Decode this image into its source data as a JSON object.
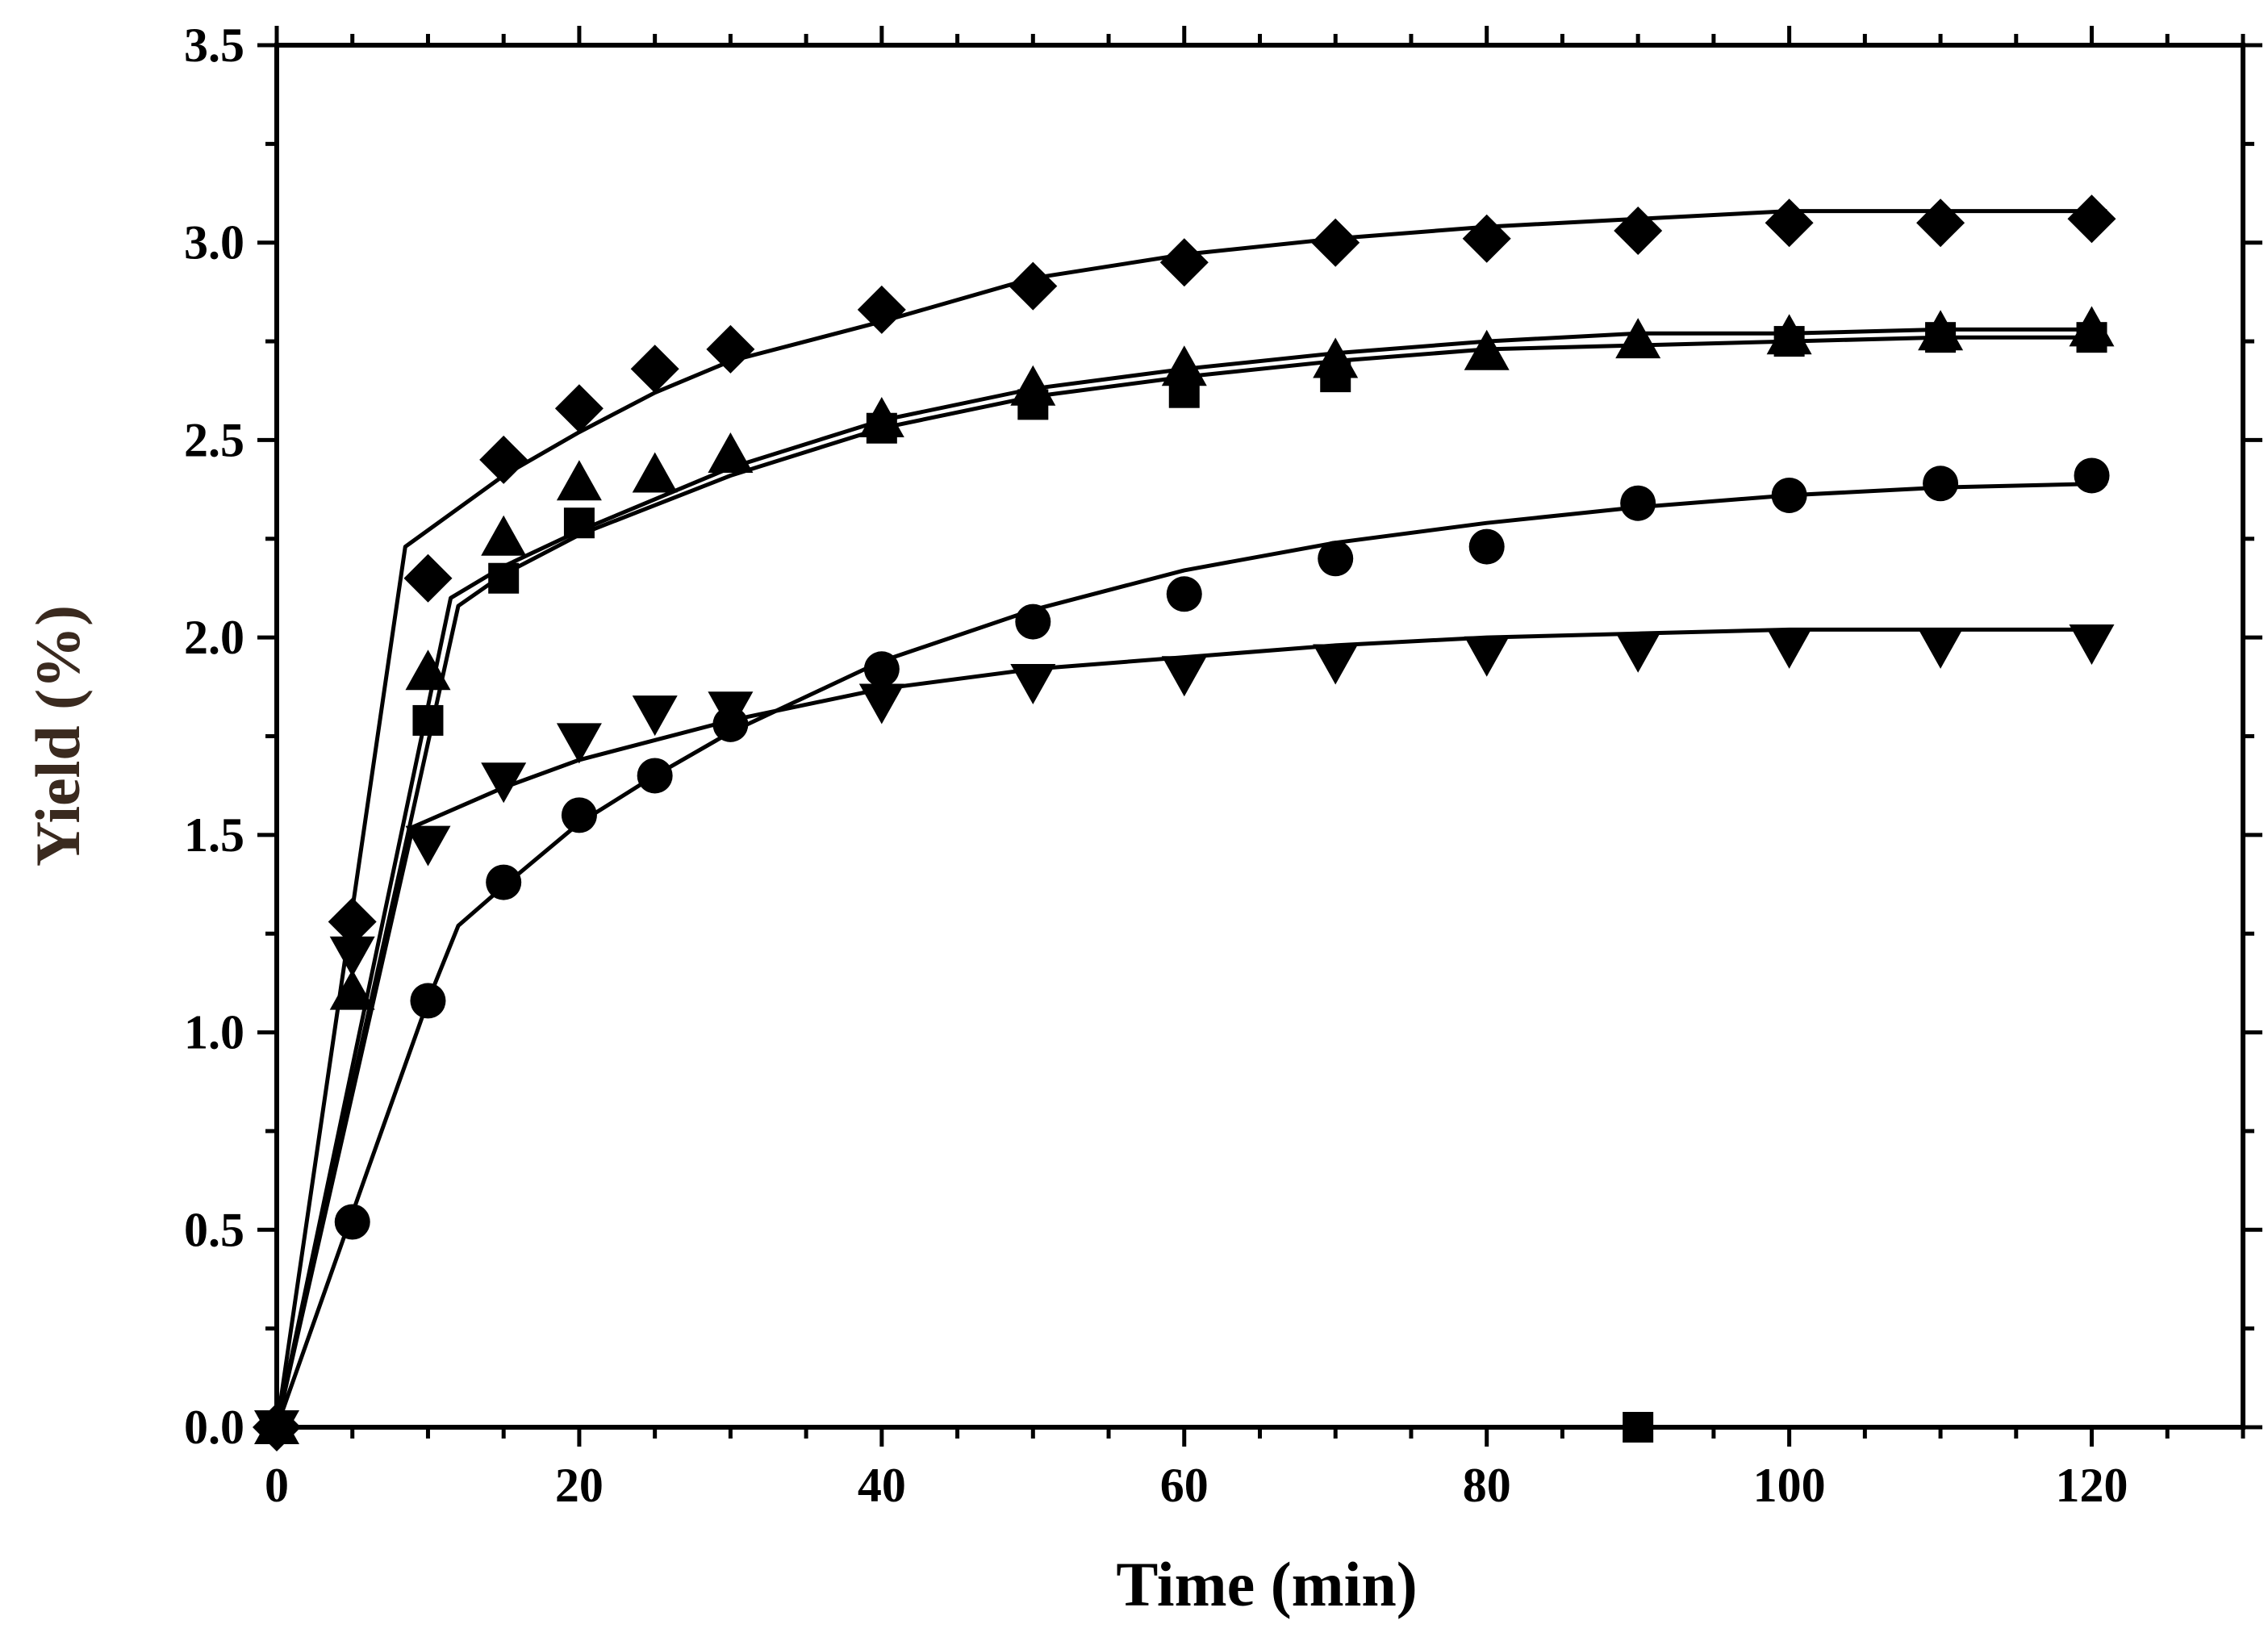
{
  "chart_data": {
    "type": "scatter",
    "title": "",
    "xlabel": "Time (min)",
    "ylabel": "Yield (%)",
    "xlim": [
      0,
      130
    ],
    "ylim": [
      0,
      3.5
    ],
    "x_ticks": [
      "0",
      "20",
      "40",
      "60",
      "80",
      "100",
      "120"
    ],
    "y_ticks": [
      "0.0",
      "0.5",
      "1.0",
      "1.5",
      "2.0",
      "2.5",
      "3.0",
      "3.5"
    ],
    "grid": false,
    "legend": "none",
    "colors": {
      "ink": "#000000",
      "xlabel": "#000000",
      "ylabel": "#3a2a1f"
    },
    "series": [
      {
        "name": "diamond",
        "marker": "diamond",
        "x": [
          0,
          5,
          10,
          15,
          20,
          25,
          30,
          40,
          50,
          60,
          70,
          80,
          90,
          100,
          110,
          120
        ],
        "values": [
          0,
          1.28,
          2.15,
          2.45,
          2.58,
          2.68,
          2.73,
          2.83,
          2.89,
          2.95,
          3.0,
          3.01,
          3.03,
          3.05,
          3.05,
          3.06
        ],
        "fit": [
          [
            0,
            0
          ],
          [
            8.5,
            2.23
          ],
          [
            15,
            2.41
          ],
          [
            20,
            2.52
          ],
          [
            25,
            2.62
          ],
          [
            30,
            2.7
          ],
          [
            40,
            2.8
          ],
          [
            50,
            2.91
          ],
          [
            60,
            2.97
          ],
          [
            70,
            3.01
          ],
          [
            80,
            3.04
          ],
          [
            90,
            3.06
          ],
          [
            100,
            3.08
          ],
          [
            110,
            3.08
          ],
          [
            121,
            3.08
          ]
        ]
      },
      {
        "name": "triangle-up",
        "marker": "triangle-up",
        "x": [
          0,
          5,
          10,
          15,
          20,
          25,
          30,
          40,
          50,
          60,
          70,
          80,
          90,
          100,
          110,
          120
        ],
        "values": [
          0,
          1.1,
          1.91,
          2.25,
          2.39,
          2.41,
          2.46,
          2.55,
          2.63,
          2.68,
          2.7,
          2.72,
          2.75,
          2.76,
          2.77,
          2.78
        ],
        "fit": [
          [
            0,
            0
          ],
          [
            11.5,
            2.1
          ],
          [
            15,
            2.18
          ],
          [
            20,
            2.27
          ],
          [
            30,
            2.43
          ],
          [
            40,
            2.55
          ],
          [
            50,
            2.63
          ],
          [
            60,
            2.68
          ],
          [
            70,
            2.72
          ],
          [
            80,
            2.75
          ],
          [
            90,
            2.77
          ],
          [
            100,
            2.77
          ],
          [
            110,
            2.78
          ],
          [
            121,
            2.78
          ]
        ]
      },
      {
        "name": "square",
        "marker": "square",
        "x": [
          0,
          10,
          15,
          20,
          40,
          50,
          60,
          70,
          90,
          100,
          110,
          120
        ],
        "values": [
          0,
          1.79,
          2.15,
          2.29,
          2.53,
          2.59,
          2.62,
          2.66,
          0.0,
          2.75,
          2.76,
          2.76
        ],
        "fit": [
          [
            0,
            0
          ],
          [
            12,
            2.08
          ],
          [
            15,
            2.16
          ],
          [
            20,
            2.26
          ],
          [
            30,
            2.41
          ],
          [
            40,
            2.53
          ],
          [
            50,
            2.61
          ],
          [
            60,
            2.66
          ],
          [
            70,
            2.7
          ],
          [
            80,
            2.73
          ],
          [
            90,
            2.74
          ],
          [
            100,
            2.75
          ],
          [
            110,
            2.76
          ],
          [
            121,
            2.76
          ]
        ]
      },
      {
        "name": "circle",
        "marker": "circle",
        "x": [
          0,
          5,
          10,
          15,
          20,
          25,
          30,
          40,
          50,
          60,
          70,
          80,
          90,
          100,
          110,
          120
        ],
        "values": [
          0,
          0.52,
          1.08,
          1.38,
          1.55,
          1.65,
          1.78,
          1.92,
          2.04,
          2.11,
          2.2,
          2.23,
          2.34,
          2.36,
          2.39,
          2.41
        ],
        "fit": [
          [
            0,
            0
          ],
          [
            6,
            0.65
          ],
          [
            10,
            1.08
          ],
          [
            12,
            1.27
          ],
          [
            15,
            1.37
          ],
          [
            20,
            1.53
          ],
          [
            25,
            1.65
          ],
          [
            30,
            1.76
          ],
          [
            40,
            1.94
          ],
          [
            50,
            2.07
          ],
          [
            60,
            2.17
          ],
          [
            70,
            2.24
          ],
          [
            80,
            2.29
          ],
          [
            90,
            2.33
          ],
          [
            100,
            2.36
          ],
          [
            110,
            2.38
          ],
          [
            121,
            2.39
          ]
        ]
      },
      {
        "name": "triangle-down",
        "marker": "triangle-down",
        "x": [
          0,
          5,
          10,
          15,
          20,
          25,
          30,
          40,
          50,
          60,
          70,
          80,
          90,
          100,
          110,
          120
        ],
        "values": [
          0,
          1.2,
          1.48,
          1.64,
          1.74,
          1.81,
          1.82,
          1.84,
          1.89,
          1.91,
          1.94,
          1.96,
          1.97,
          1.98,
          1.98,
          1.99
        ],
        "fit": [
          [
            0,
            0
          ],
          [
            9,
            1.52
          ],
          [
            15,
            1.62
          ],
          [
            20,
            1.69
          ],
          [
            30,
            1.79
          ],
          [
            40,
            1.87
          ],
          [
            50,
            1.92
          ],
          [
            60,
            1.95
          ],
          [
            70,
            1.98
          ],
          [
            80,
            2.0
          ],
          [
            90,
            2.01
          ],
          [
            100,
            2.02
          ],
          [
            110,
            2.02
          ],
          [
            121,
            2.02
          ]
        ]
      }
    ]
  }
}
